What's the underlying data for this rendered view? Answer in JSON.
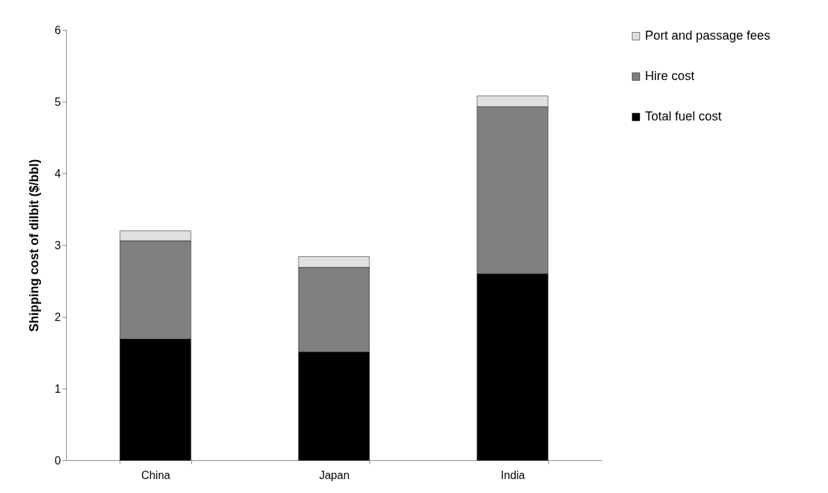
{
  "chart_data": {
    "type": "bar",
    "stacked": true,
    "ylabel": "Shipping cost of dilbit ($/bbl)",
    "categories": [
      "China",
      "Japan",
      "India"
    ],
    "series": [
      {
        "name": "Total fuel cost",
        "color": "#000000",
        "values": [
          1.69,
          1.51,
          2.6
        ]
      },
      {
        "name": "Hire cost",
        "color": "#808080",
        "values": [
          1.37,
          1.18,
          2.33
        ]
      },
      {
        "name": "Port and passage fees",
        "color": "#e0e0e0",
        "values": [
          0.14,
          0.15,
          0.15
        ]
      }
    ],
    "ylim": [
      0,
      6
    ],
    "yticks": [
      0,
      1,
      2,
      3,
      4,
      5,
      6
    ],
    "grid": false,
    "legend": "right"
  }
}
